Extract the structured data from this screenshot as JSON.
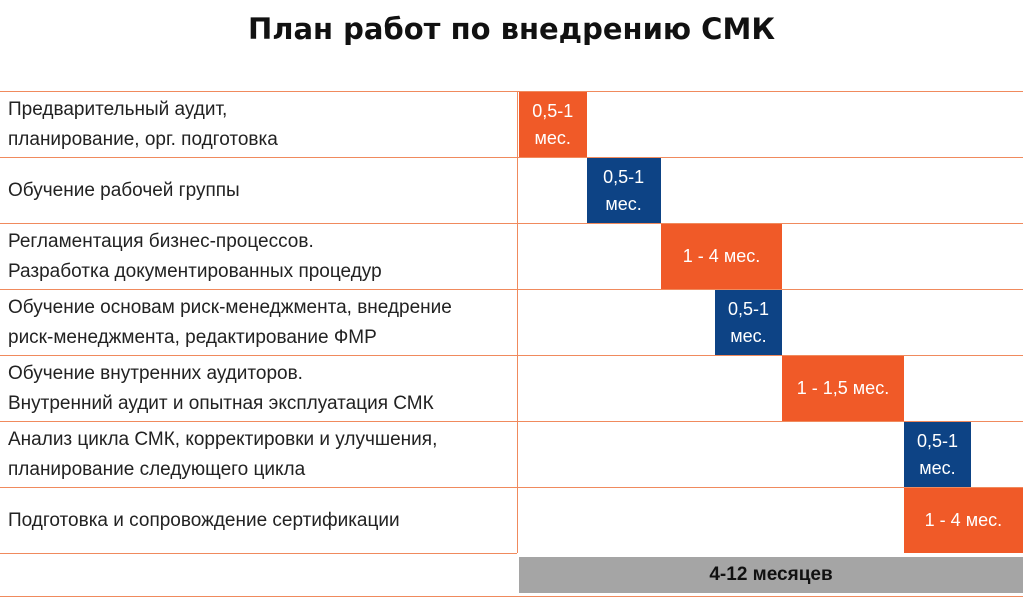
{
  "chart_data": {
    "type": "gantt",
    "title": "План работ по внедрению СМК",
    "tasks": [
      {
        "label": "Предварительный аудит,\nпланирование, орг. подготовка",
        "start": 0,
        "duration": 1,
        "bar_label": "0,5-1\nмес.",
        "color": "#f05a28"
      },
      {
        "label": "Обучение рабочей группы",
        "start": 1,
        "duration": 1.1,
        "bar_label": "0,5-1\nмес.",
        "color": "#0d4385"
      },
      {
        "label": "Регламентация бизнес-процессов.\nРазработка документированных процедур",
        "start": 2.1,
        "duration": 1.8,
        "bar_label": "1 - 4 мес.",
        "color": "#f05a28"
      },
      {
        "label": "Обучение основам риск-менеджмента, внедрение\nриск-менеджмента, редактирование ФМР",
        "start": 2.9,
        "duration": 1,
        "bar_label": "0,5-1\nмес.",
        "color": "#0d4385"
      },
      {
        "label": "Обучение внутренних аудиторов.\nВнутренний аудит и опытная эксплуатация СМК",
        "start": 3.9,
        "duration": 1.8,
        "bar_label": "1 - 1,5 мес.",
        "color": "#f05a28"
      },
      {
        "label": "Анализ цикла СМК, корректировки и улучшения,\nпланирование следующего цикла",
        "start": 5.7,
        "duration": 1,
        "bar_label": "0,5-1\nмес.",
        "color": "#0d4385"
      },
      {
        "label": "Подготовка и сопровождение сертификации",
        "start": 5.7,
        "duration": 1.8,
        "bar_label": "1 - 4 мес.",
        "color": "#f05a28"
      }
    ],
    "total_label": "4-12 месяцев",
    "colors": {
      "line": "#f08a5d",
      "total_bar": "#a5a5a5"
    }
  }
}
